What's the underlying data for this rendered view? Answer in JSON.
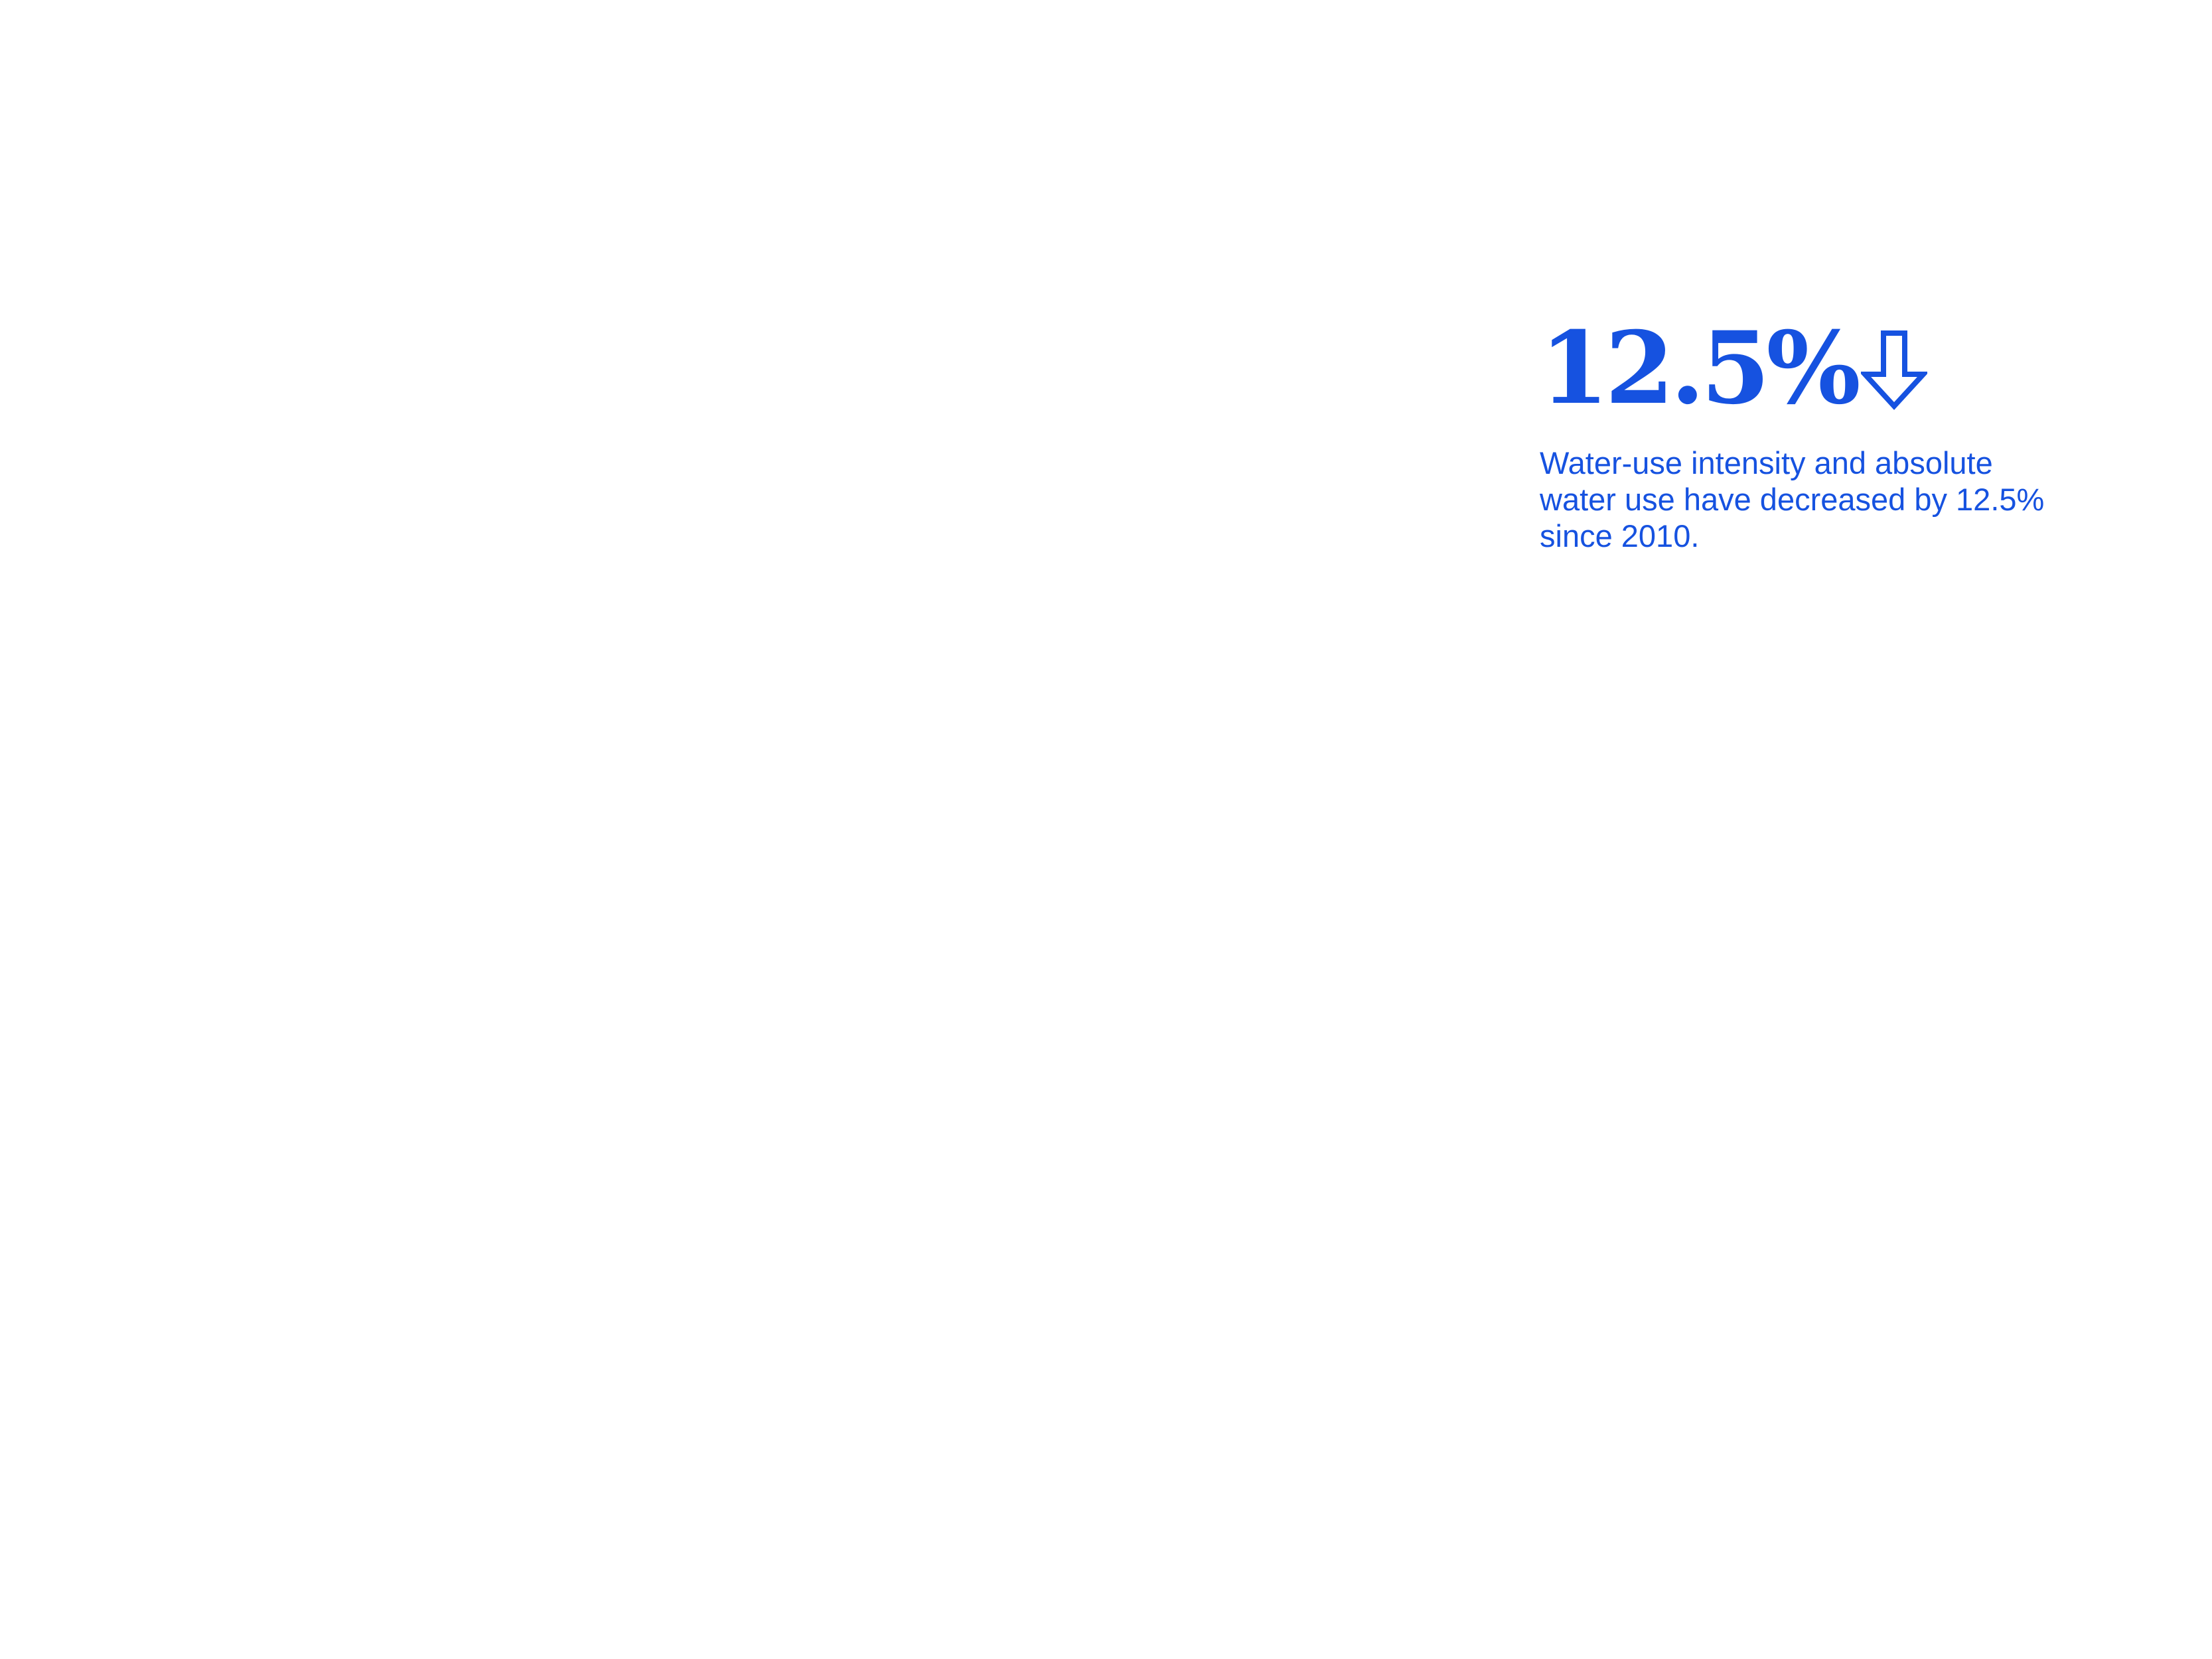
{
  "accent_color": "#1652e0",
  "stat": {
    "value": "12.5%",
    "trend_icon": "down-arrow-icon",
    "description": "Water-use intensity and absolute\nwater use have decreased by 12.5%\nsince 2010."
  }
}
